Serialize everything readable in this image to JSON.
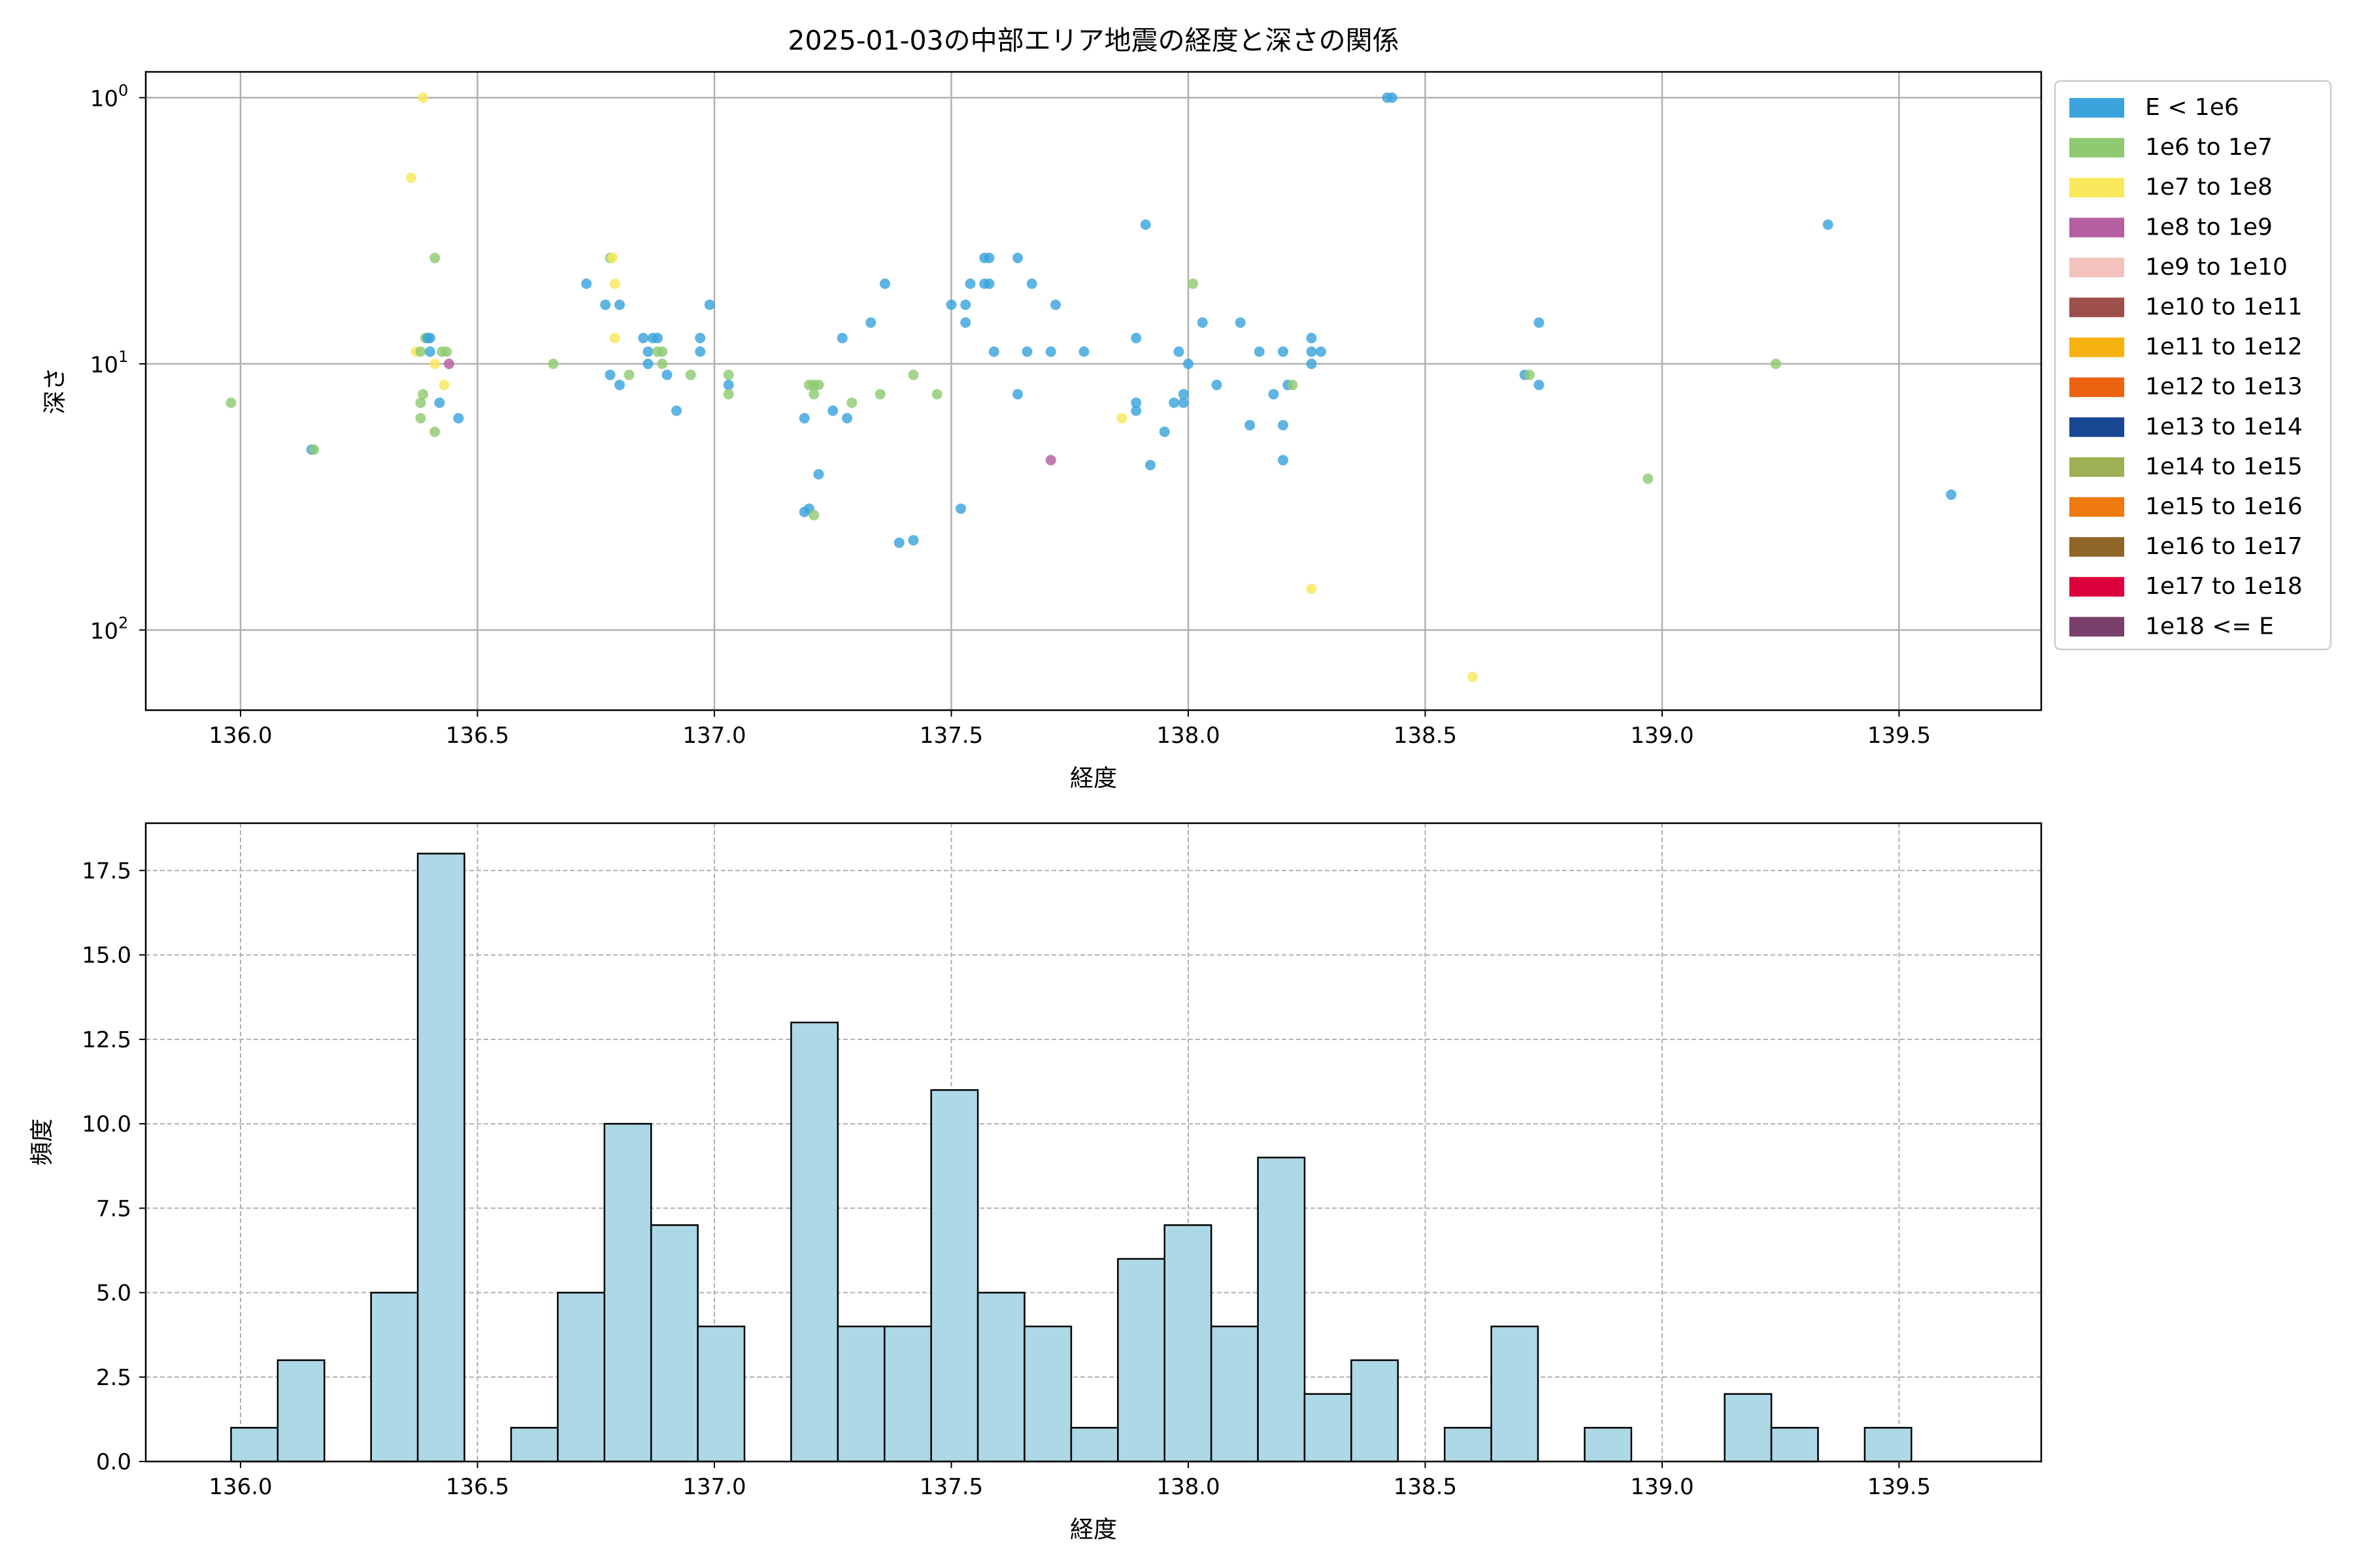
{
  "figure": {
    "title": "2025-01-03の中部エリア地震の経度と深さの関係"
  },
  "chart_data": [
    {
      "type": "scatter",
      "title": "2025-01-03の中部エリア地震の経度と深さの関係",
      "xlabel": "経度",
      "ylabel": "深さ",
      "y_scale": "log",
      "y_inverted": true,
      "xlim": [
        135.8,
        139.8
      ],
      "ylim": [
        200,
        0.8
      ],
      "x_ticks": [
        "136.0",
        "136.5",
        "137.0",
        "137.5",
        "138.0",
        "138.5",
        "139.0",
        "139.5"
      ],
      "x_tick_values": [
        136.0,
        136.5,
        137.0,
        137.5,
        138.0,
        138.5,
        139.0,
        139.5
      ],
      "y_ticks": [
        {
          "value": 1,
          "base": "10",
          "exp": "0"
        },
        {
          "value": 10,
          "base": "10",
          "exp": "1"
        },
        {
          "value": 100,
          "base": "10",
          "exp": "2"
        }
      ],
      "grid": true,
      "legend_position": "outside right, top",
      "legend": [
        {
          "label": "E < 1e6",
          "color": "#3ba3dc"
        },
        {
          "label": "1e6 to 1e7",
          "color": "#8fca72"
        },
        {
          "label": "1e7 to 1e8",
          "color": "#f8e85c"
        },
        {
          "label": "1e8 to 1e9",
          "color": "#b55fa1"
        },
        {
          "label": "1e9 to 1e10",
          "color": "#f4c2bd"
        },
        {
          "label": "1e10 to 1e11",
          "color": "#9c4f4b"
        },
        {
          "label": "1e11 to 1e12",
          "color": "#f6b310"
        },
        {
          "label": "1e12 to 1e13",
          "color": "#ec6312"
        },
        {
          "label": "1e13 to 1e14",
          "color": "#1a4794"
        },
        {
          "label": "1e14 to 1e15",
          "color": "#9db053"
        },
        {
          "label": "1e15 to 1e16",
          "color": "#ee7a10"
        },
        {
          "label": "1e16 to 1e17",
          "color": "#8f6628"
        },
        {
          "label": "1e17 to 1e18",
          "color": "#dc003c"
        },
        {
          "label": "1e18 <= E",
          "color": "#78406a"
        }
      ],
      "points": [
        {
          "x": 135.98,
          "y": 14,
          "c": 1
        },
        {
          "x": 136.15,
          "y": 21,
          "c": 0
        },
        {
          "x": 136.155,
          "y": 21,
          "c": 1
        },
        {
          "x": 136.36,
          "y": 2,
          "c": 2
        },
        {
          "x": 136.385,
          "y": 1,
          "c": 2
        },
        {
          "x": 136.37,
          "y": 9,
          "c": 2
        },
        {
          "x": 136.38,
          "y": 9,
          "c": 1
        },
        {
          "x": 136.39,
          "y": 8,
          "c": 1
        },
        {
          "x": 136.395,
          "y": 8,
          "c": 0
        },
        {
          "x": 136.4,
          "y": 9,
          "c": 0
        },
        {
          "x": 136.4,
          "y": 8,
          "c": 0
        },
        {
          "x": 136.41,
          "y": 4,
          "c": 1
        },
        {
          "x": 136.41,
          "y": 10,
          "c": 2
        },
        {
          "x": 136.42,
          "y": 14,
          "c": 0
        },
        {
          "x": 136.425,
          "y": 9,
          "c": 1
        },
        {
          "x": 136.43,
          "y": 12,
          "c": 2
        },
        {
          "x": 136.435,
          "y": 9,
          "c": 1
        },
        {
          "x": 136.38,
          "y": 14,
          "c": 1
        },
        {
          "x": 136.385,
          "y": 13,
          "c": 1
        },
        {
          "x": 136.38,
          "y": 16,
          "c": 1
        },
        {
          "x": 136.41,
          "y": 18,
          "c": 1
        },
        {
          "x": 136.44,
          "y": 10,
          "c": 3
        },
        {
          "x": 136.46,
          "y": 16,
          "c": 0
        },
        {
          "x": 136.66,
          "y": 10,
          "c": 1
        },
        {
          "x": 136.73,
          "y": 5,
          "c": 0
        },
        {
          "x": 136.77,
          "y": 6,
          "c": 0
        },
        {
          "x": 136.78,
          "y": 4,
          "c": 1
        },
        {
          "x": 136.785,
          "y": 4,
          "c": 2
        },
        {
          "x": 136.79,
          "y": 5,
          "c": 2
        },
        {
          "x": 136.79,
          "y": 8,
          "c": 2
        },
        {
          "x": 136.8,
          "y": 6,
          "c": 0
        },
        {
          "x": 136.78,
          "y": 11,
          "c": 0
        },
        {
          "x": 136.8,
          "y": 12,
          "c": 0
        },
        {
          "x": 136.82,
          "y": 11,
          "c": 1
        },
        {
          "x": 136.86,
          "y": 9,
          "c": 0
        },
        {
          "x": 136.86,
          "y": 10,
          "c": 0
        },
        {
          "x": 136.85,
          "y": 8,
          "c": 0
        },
        {
          "x": 136.87,
          "y": 8,
          "c": 0
        },
        {
          "x": 136.88,
          "y": 8,
          "c": 0
        },
        {
          "x": 136.88,
          "y": 9,
          "c": 1
        },
        {
          "x": 136.89,
          "y": 9,
          "c": 1
        },
        {
          "x": 136.89,
          "y": 10,
          "c": 1
        },
        {
          "x": 136.9,
          "y": 11,
          "c": 0
        },
        {
          "x": 136.92,
          "y": 15,
          "c": 0
        },
        {
          "x": 136.95,
          "y": 11,
          "c": 1
        },
        {
          "x": 136.97,
          "y": 8,
          "c": 0
        },
        {
          "x": 136.97,
          "y": 9,
          "c": 0
        },
        {
          "x": 136.99,
          "y": 6,
          "c": 0
        },
        {
          "x": 137.03,
          "y": 11,
          "c": 1
        },
        {
          "x": 137.03,
          "y": 12,
          "c": 0
        },
        {
          "x": 137.03,
          "y": 13,
          "c": 1
        },
        {
          "x": 137.19,
          "y": 16,
          "c": 0
        },
        {
          "x": 137.19,
          "y": 36,
          "c": 0
        },
        {
          "x": 137.2,
          "y": 35,
          "c": 0
        },
        {
          "x": 137.2,
          "y": 12,
          "c": 1
        },
        {
          "x": 137.21,
          "y": 12,
          "c": 1
        },
        {
          "x": 137.21,
          "y": 13,
          "c": 1
        },
        {
          "x": 137.22,
          "y": 12,
          "c": 1
        },
        {
          "x": 137.21,
          "y": 37,
          "c": 1
        },
        {
          "x": 137.22,
          "y": 26,
          "c": 0
        },
        {
          "x": 137.25,
          "y": 15,
          "c": 0
        },
        {
          "x": 137.27,
          "y": 8,
          "c": 0
        },
        {
          "x": 137.28,
          "y": 16,
          "c": 0
        },
        {
          "x": 137.29,
          "y": 14,
          "c": 1
        },
        {
          "x": 137.33,
          "y": 7,
          "c": 0
        },
        {
          "x": 137.35,
          "y": 13,
          "c": 1
        },
        {
          "x": 137.36,
          "y": 5,
          "c": 0
        },
        {
          "x": 137.39,
          "y": 47,
          "c": 0
        },
        {
          "x": 137.42,
          "y": 46,
          "c": 0
        },
        {
          "x": 137.42,
          "y": 11,
          "c": 1
        },
        {
          "x": 137.47,
          "y": 13,
          "c": 1
        },
        {
          "x": 137.5,
          "y": 6,
          "c": 0
        },
        {
          "x": 137.52,
          "y": 35,
          "c": 0
        },
        {
          "x": 137.53,
          "y": 6,
          "c": 0
        },
        {
          "x": 137.53,
          "y": 7,
          "c": 0
        },
        {
          "x": 137.54,
          "y": 5,
          "c": 0
        },
        {
          "x": 137.57,
          "y": 5,
          "c": 0
        },
        {
          "x": 137.57,
          "y": 4,
          "c": 0
        },
        {
          "x": 137.58,
          "y": 5,
          "c": 0
        },
        {
          "x": 137.58,
          "y": 4,
          "c": 0
        },
        {
          "x": 137.59,
          "y": 9,
          "c": 0
        },
        {
          "x": 137.64,
          "y": 4,
          "c": 0
        },
        {
          "x": 137.64,
          "y": 13,
          "c": 0
        },
        {
          "x": 137.66,
          "y": 9,
          "c": 0
        },
        {
          "x": 137.67,
          "y": 5,
          "c": 0
        },
        {
          "x": 137.71,
          "y": 9,
          "c": 0
        },
        {
          "x": 137.72,
          "y": 6,
          "c": 0
        },
        {
          "x": 137.71,
          "y": 23,
          "c": 3
        },
        {
          "x": 137.78,
          "y": 9,
          "c": 0
        },
        {
          "x": 137.86,
          "y": 16,
          "c": 2
        },
        {
          "x": 137.89,
          "y": 8,
          "c": 0
        },
        {
          "x": 137.89,
          "y": 14,
          "c": 0
        },
        {
          "x": 137.89,
          "y": 15,
          "c": 0
        },
        {
          "x": 137.91,
          "y": 3,
          "c": 0
        },
        {
          "x": 137.92,
          "y": 24,
          "c": 0
        },
        {
          "x": 137.95,
          "y": 18,
          "c": 0
        },
        {
          "x": 137.97,
          "y": 14,
          "c": 0
        },
        {
          "x": 137.98,
          "y": 9,
          "c": 0
        },
        {
          "x": 137.99,
          "y": 13,
          "c": 0
        },
        {
          "x": 137.99,
          "y": 14,
          "c": 0
        },
        {
          "x": 138.0,
          "y": 10,
          "c": 0
        },
        {
          "x": 138.01,
          "y": 5,
          "c": 1
        },
        {
          "x": 138.03,
          "y": 7,
          "c": 0
        },
        {
          "x": 138.06,
          "y": 12,
          "c": 0
        },
        {
          "x": 138.11,
          "y": 7,
          "c": 0
        },
        {
          "x": 138.13,
          "y": 17,
          "c": 0
        },
        {
          "x": 138.15,
          "y": 9,
          "c": 0
        },
        {
          "x": 138.18,
          "y": 13,
          "c": 0
        },
        {
          "x": 138.2,
          "y": 9,
          "c": 0
        },
        {
          "x": 138.2,
          "y": 17,
          "c": 0
        },
        {
          "x": 138.2,
          "y": 23,
          "c": 0
        },
        {
          "x": 138.21,
          "y": 12,
          "c": 0
        },
        {
          "x": 138.22,
          "y": 12,
          "c": 1
        },
        {
          "x": 138.26,
          "y": 9,
          "c": 0
        },
        {
          "x": 138.26,
          "y": 8,
          "c": 0
        },
        {
          "x": 138.26,
          "y": 10,
          "c": 0
        },
        {
          "x": 138.28,
          "y": 9,
          "c": 0
        },
        {
          "x": 138.26,
          "y": 70,
          "c": 2
        },
        {
          "x": 138.42,
          "y": 1,
          "c": 0
        },
        {
          "x": 138.43,
          "y": 1,
          "c": 0
        },
        {
          "x": 138.6,
          "y": 150,
          "c": 2
        },
        {
          "x": 138.71,
          "y": 11,
          "c": 0
        },
        {
          "x": 138.72,
          "y": 11,
          "c": 1
        },
        {
          "x": 138.74,
          "y": 7,
          "c": 0
        },
        {
          "x": 138.74,
          "y": 12,
          "c": 0
        },
        {
          "x": 138.97,
          "y": 27,
          "c": 1
        },
        {
          "x": 139.24,
          "y": 10,
          "c": 1
        },
        {
          "x": 139.35,
          "y": 3,
          "c": 0
        },
        {
          "x": 139.61,
          "y": 31,
          "c": 0
        }
      ]
    },
    {
      "type": "bar",
      "subtype": "histogram",
      "xlabel": "経度",
      "ylabel": "頻度",
      "xlim": [
        135.8,
        139.8
      ],
      "ylim": [
        0,
        18.9
      ],
      "x_ticks": [
        "136.0",
        "136.5",
        "137.0",
        "137.5",
        "138.0",
        "138.5",
        "139.0",
        "139.5"
      ],
      "x_tick_values": [
        136.0,
        136.5,
        137.0,
        137.5,
        138.0,
        138.5,
        139.0,
        139.5
      ],
      "y_ticks": [
        "0.0",
        "2.5",
        "5.0",
        "7.5",
        "10.0",
        "12.5",
        "15.0",
        "17.5"
      ],
      "y_tick_values": [
        0,
        2.5,
        5,
        7.5,
        10,
        12.5,
        15,
        17.5
      ],
      "grid": "dashed",
      "bar_color": "#add8e6",
      "bin_start": 135.98,
      "bin_width": 0.0985,
      "counts": [
        1,
        3,
        0,
        5,
        18,
        0,
        1,
        5,
        10,
        7,
        4,
        0,
        13,
        4,
        4,
        11,
        5,
        4,
        1,
        6,
        7,
        4,
        9,
        2,
        3,
        0,
        1,
        4,
        0,
        1,
        0,
        0,
        2,
        1,
        0,
        1
      ]
    }
  ]
}
